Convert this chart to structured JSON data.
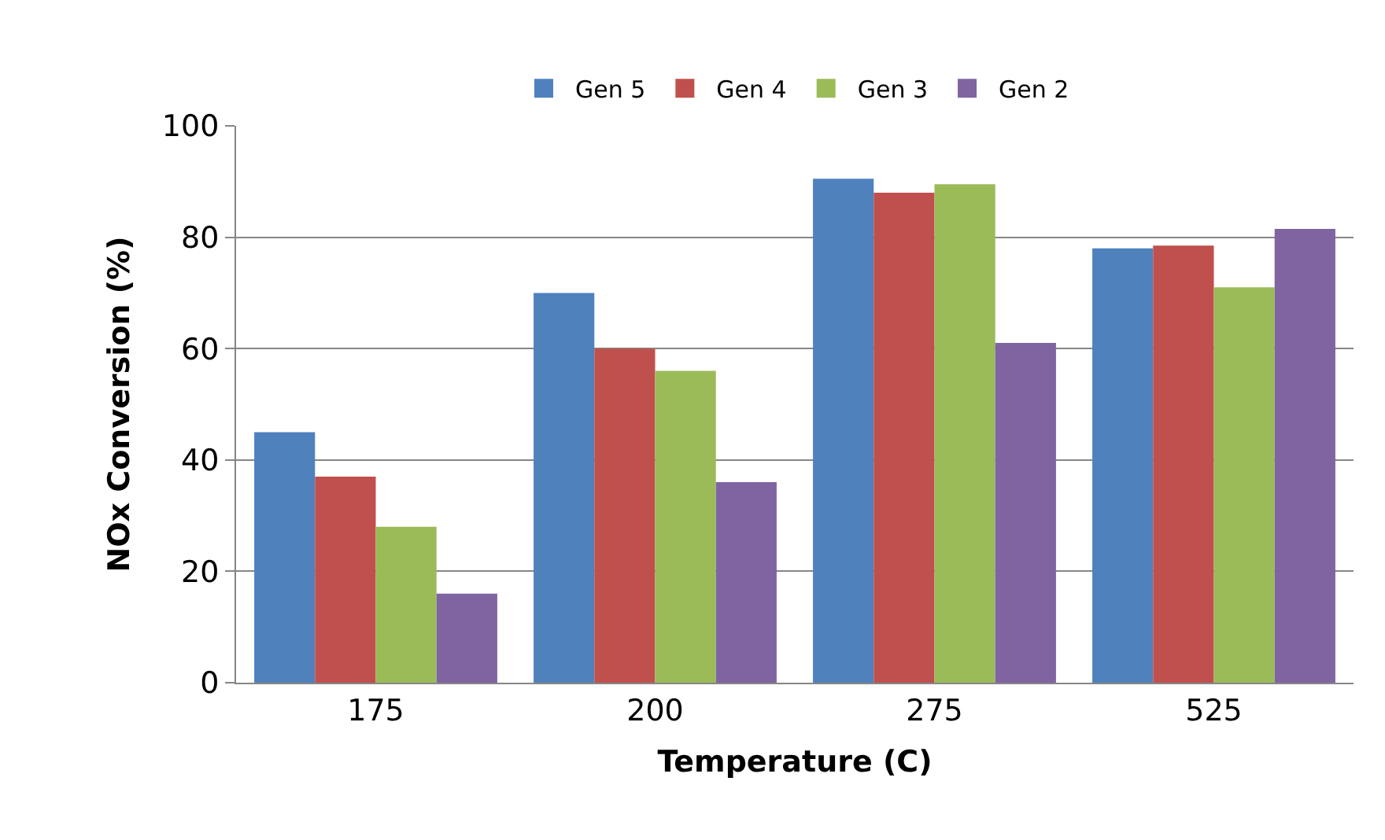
{
  "chart_data": {
    "type": "bar",
    "xlabel": "Temperature (C)",
    "ylabel": "NOx Conversion (%)",
    "categories": [
      "175",
      "200",
      "275",
      "525"
    ],
    "series": [
      {
        "name": "Gen 5",
        "color": "#4f81bd",
        "values": [
          45,
          70,
          90.5,
          78
        ]
      },
      {
        "name": "Gen 4",
        "color": "#c0504d",
        "values": [
          37,
          60,
          88,
          78.5
        ]
      },
      {
        "name": "Gen 3",
        "color": "#9bbb59",
        "values": [
          28,
          56,
          89.5,
          71
        ]
      },
      {
        "name": "Gen 2",
        "color": "#8064a2",
        "values": [
          16,
          36,
          61,
          81.5
        ]
      }
    ],
    "ylim": [
      0,
      100
    ],
    "yticks": [
      0,
      20,
      40,
      60,
      80,
      100
    ],
    "grid": "y",
    "legend": "top"
  }
}
